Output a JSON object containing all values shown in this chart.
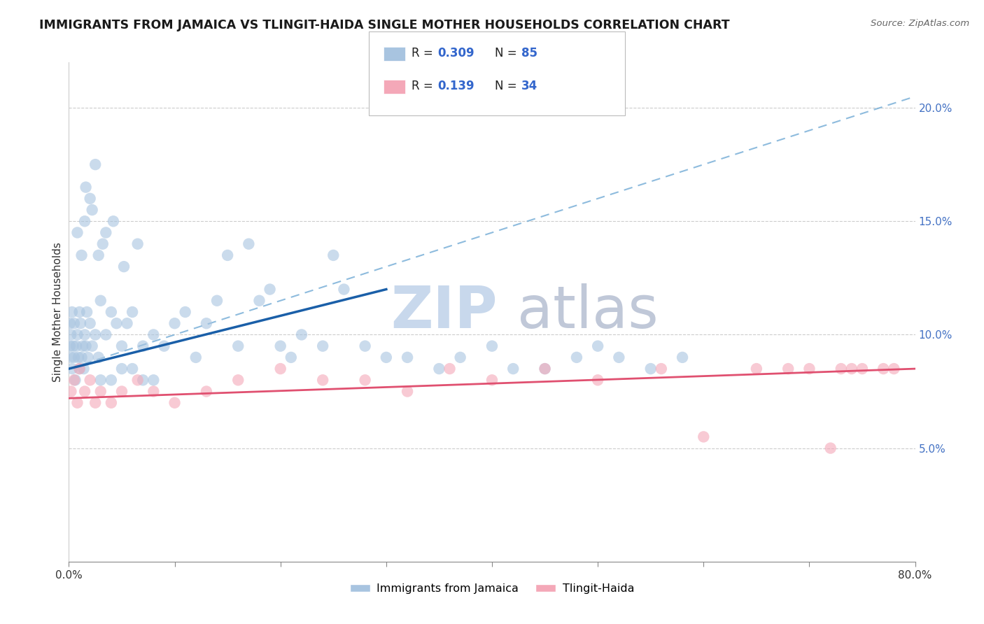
{
  "title": "IMMIGRANTS FROM JAMAICA VS TLINGIT-HAIDA SINGLE MOTHER HOUSEHOLDS CORRELATION CHART",
  "source": "Source: ZipAtlas.com",
  "ylabel": "Single Mother Households",
  "legend_entries": [
    "Immigrants from Jamaica",
    "Tlingit-Haida"
  ],
  "blue_color": "#a8c4e0",
  "blue_line_color": "#1a5fa8",
  "pink_color": "#f4a8b8",
  "pink_line_color": "#e05070",
  "dashed_line_color": "#7ab0d8",
  "xlim": [
    0,
    80
  ],
  "ylim": [
    0,
    22
  ],
  "x_ticks": [
    0,
    10,
    20,
    30,
    40,
    50,
    60,
    70,
    80
  ],
  "x_tick_labels_show": [
    "0.0%",
    "",
    "",
    "",
    "",
    "",
    "",
    "",
    "80.0%"
  ],
  "y_ticks_right": [
    5,
    10,
    15,
    20
  ],
  "blue_line": [
    [
      0,
      30
    ],
    [
      8.5,
      12.0
    ]
  ],
  "pink_line": [
    [
      0,
      80
    ],
    [
      7.2,
      8.5
    ]
  ],
  "dashed_line": [
    [
      0,
      80
    ],
    [
      8.5,
      20.5
    ]
  ],
  "blue_scatter_x": [
    0.1,
    0.1,
    0.2,
    0.2,
    0.3,
    0.3,
    0.4,
    0.5,
    0.5,
    0.6,
    0.7,
    0.8,
    0.9,
    1.0,
    1.0,
    1.1,
    1.2,
    1.3,
    1.4,
    1.5,
    1.6,
    1.7,
    1.8,
    2.0,
    2.2,
    2.5,
    2.8,
    3.0,
    3.5,
    4.0,
    4.5,
    5.0,
    5.5,
    6.0,
    7.0,
    8.0,
    9.0,
    10.0,
    11.0,
    12.0,
    13.0,
    14.0,
    15.0,
    16.0,
    17.0,
    18.0,
    19.0,
    20.0,
    21.0,
    22.0,
    24.0,
    25.0,
    26.0,
    28.0,
    30.0,
    32.0,
    35.0,
    37.0,
    40.0,
    42.0,
    45.0,
    48.0,
    50.0,
    52.0,
    55.0,
    58.0,
    3.0,
    4.0,
    5.0,
    6.0,
    7.0,
    8.0,
    1.5,
    2.0,
    2.5,
    3.5,
    0.8,
    1.2,
    1.6,
    2.2,
    2.8,
    3.2,
    4.2,
    5.2,
    6.5
  ],
  "blue_scatter_y": [
    9.5,
    10.5,
    9.0,
    10.0,
    8.5,
    11.0,
    9.5,
    9.0,
    10.5,
    8.0,
    9.5,
    10.0,
    9.0,
    11.0,
    8.5,
    10.5,
    9.0,
    9.5,
    8.5,
    10.0,
    9.5,
    11.0,
    9.0,
    10.5,
    9.5,
    10.0,
    9.0,
    11.5,
    10.0,
    11.0,
    10.5,
    9.5,
    10.5,
    11.0,
    9.5,
    10.0,
    9.5,
    10.5,
    11.0,
    9.0,
    10.5,
    11.5,
    13.5,
    9.5,
    14.0,
    11.5,
    12.0,
    9.5,
    9.0,
    10.0,
    9.5,
    13.5,
    12.0,
    9.5,
    9.0,
    9.0,
    8.5,
    9.0,
    9.5,
    8.5,
    8.5,
    9.0,
    9.5,
    9.0,
    8.5,
    9.0,
    8.0,
    8.0,
    8.5,
    8.5,
    8.0,
    8.0,
    15.0,
    16.0,
    17.5,
    14.5,
    14.5,
    13.5,
    16.5,
    15.5,
    13.5,
    14.0,
    15.0,
    13.0,
    14.0
  ],
  "pink_scatter_x": [
    0.2,
    0.5,
    0.8,
    1.0,
    1.5,
    2.0,
    2.5,
    3.0,
    4.0,
    5.0,
    6.5,
    8.0,
    10.0,
    13.0,
    16.0,
    20.0,
    24.0,
    28.0,
    32.0,
    36.0,
    40.0,
    45.0,
    50.0,
    56.0,
    60.0,
    65.0,
    68.0,
    70.0,
    72.0,
    73.0,
    74.0,
    75.0,
    77.0,
    78.0
  ],
  "pink_scatter_y": [
    7.5,
    8.0,
    7.0,
    8.5,
    7.5,
    8.0,
    7.0,
    7.5,
    7.0,
    7.5,
    8.0,
    7.5,
    7.0,
    7.5,
    8.0,
    8.5,
    8.0,
    8.0,
    7.5,
    8.5,
    8.0,
    8.5,
    8.0,
    8.5,
    5.5,
    8.5,
    8.5,
    8.5,
    5.0,
    8.5,
    8.5,
    8.5,
    8.5,
    8.5
  ],
  "watermark_zip_color": "#c8d8ec",
  "watermark_atlas_color": "#c0c8d8"
}
